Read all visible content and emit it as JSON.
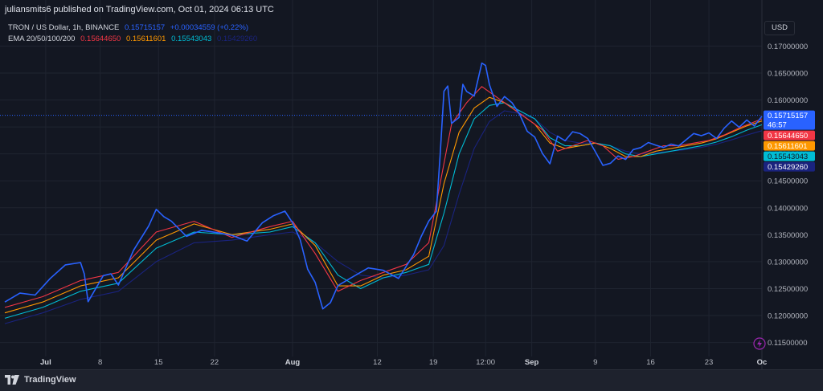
{
  "header": {
    "published_by": "juliansmits6 published on TradingView.com, Oct 01, 2024 06:13 UTC"
  },
  "legend": {
    "symbol": "TRON / US Dollar, 1h, BINANCE",
    "price": "0.15715157",
    "change": "+0.00034559 (+0.22%)",
    "ema_label": "EMA 20/50/100/200",
    "ema20": "0.15644650",
    "ema50": "0.15611601",
    "ema100": "0.15543043",
    "ema200": "0.15429260"
  },
  "currency": "USD",
  "price_labels": {
    "last": "0.15715157",
    "countdown": "46:57",
    "ema20": "0.15644650",
    "ema50": "0.15611601",
    "ema100": "0.15543043",
    "ema200": "0.15429260"
  },
  "footer": {
    "brand": "TradingView"
  },
  "colors": {
    "price": "#2962ff",
    "ema20": "#f23645",
    "ema50": "#ff9800",
    "ema100": "#00bcd4",
    "ema200": "#1a237e",
    "background": "#131722"
  },
  "chart_data": {
    "type": "line",
    "title": "TRON / US Dollar, 1h, BINANCE",
    "ylim": [
      0.113,
      0.172
    ],
    "yticks": [
      "0.17000000",
      "0.16500000",
      "0.16000000",
      "0.15500000",
      "0.15000000",
      "0.14500000",
      "0.14000000",
      "0.13500000",
      "0.13000000",
      "0.12500000",
      "0.12000000",
      "0.11500000"
    ],
    "ytick_values": [
      0.17,
      0.165,
      0.16,
      0.155,
      0.15,
      0.145,
      0.14,
      0.135,
      0.13,
      0.125,
      0.12,
      0.115
    ],
    "xticks": [
      {
        "label": "Jul",
        "pos": 0.054,
        "bold": true
      },
      {
        "label": "8",
        "pos": 0.126,
        "bold": false
      },
      {
        "label": "15",
        "pos": 0.203,
        "bold": false
      },
      {
        "label": "22",
        "pos": 0.277,
        "bold": false
      },
      {
        "label": "Aug",
        "pos": 0.38,
        "bold": true
      },
      {
        "label": "12",
        "pos": 0.492,
        "bold": false
      },
      {
        "label": "19",
        "pos": 0.566,
        "bold": false
      },
      {
        "label": "12:00",
        "pos": 0.635,
        "bold": false
      },
      {
        "label": "Sep",
        "pos": 0.696,
        "bold": true
      },
      {
        "label": "9",
        "pos": 0.78,
        "bold": false
      },
      {
        "label": "16",
        "pos": 0.853,
        "bold": false
      },
      {
        "label": "23",
        "pos": 0.93,
        "bold": false
      },
      {
        "label": "Oc",
        "pos": 1.0,
        "bold": true
      }
    ],
    "series": [
      {
        "name": "TRON / US Dollar",
        "color": "#2962ff",
        "x": [
          0,
          0.02,
          0.04,
          0.06,
          0.08,
          0.1,
          0.105,
          0.11,
          0.13,
          0.14,
          0.15,
          0.17,
          0.19,
          0.2,
          0.21,
          0.22,
          0.24,
          0.26,
          0.28,
          0.3,
          0.32,
          0.34,
          0.355,
          0.37,
          0.38,
          0.39,
          0.4,
          0.41,
          0.42,
          0.43,
          0.44,
          0.46,
          0.48,
          0.5,
          0.52,
          0.54,
          0.55,
          0.56,
          0.57,
          0.575,
          0.58,
          0.585,
          0.59,
          0.6,
          0.605,
          0.61,
          0.62,
          0.63,
          0.635,
          0.64,
          0.65,
          0.66,
          0.67,
          0.68,
          0.69,
          0.7,
          0.71,
          0.72,
          0.73,
          0.74,
          0.75,
          0.76,
          0.77,
          0.78,
          0.79,
          0.8,
          0.81,
          0.82,
          0.83,
          0.84,
          0.85,
          0.86,
          0.87,
          0.88,
          0.89,
          0.9,
          0.91,
          0.92,
          0.93,
          0.94,
          0.95,
          0.96,
          0.97,
          0.98,
          0.99,
          1.0
        ],
        "y": [
          0.1225,
          0.124,
          0.1235,
          0.1265,
          0.129,
          0.1295,
          0.1275,
          0.1225,
          0.1275,
          0.128,
          0.126,
          0.1325,
          0.137,
          0.14,
          0.1385,
          0.1375,
          0.1345,
          0.1355,
          0.135,
          0.1345,
          0.1335,
          0.137,
          0.1385,
          0.1395,
          0.1375,
          0.1345,
          0.129,
          0.1265,
          0.1215,
          0.1225,
          0.1255,
          0.127,
          0.1285,
          0.128,
          0.1265,
          0.131,
          0.1345,
          0.1375,
          0.1395,
          0.15,
          0.162,
          0.163,
          0.156,
          0.157,
          0.163,
          0.1615,
          0.1605,
          0.1665,
          0.166,
          0.1625,
          0.1585,
          0.1605,
          0.1595,
          0.1575,
          0.1545,
          0.1535,
          0.1505,
          0.1485,
          0.1535,
          0.1525,
          0.154,
          0.1535,
          0.1525,
          0.15,
          0.1475,
          0.148,
          0.1495,
          0.149,
          0.151,
          0.1515,
          0.1525,
          0.152,
          0.1515,
          0.152,
          0.1515,
          0.1525,
          0.1535,
          0.153,
          0.1535,
          0.1525,
          0.1545,
          0.156,
          0.155,
          0.1565,
          0.1555,
          0.157
        ]
      },
      {
        "name": "EMA 20",
        "color": "#f23645",
        "x": [
          0,
          0.05,
          0.1,
          0.15,
          0.2,
          0.25,
          0.3,
          0.35,
          0.38,
          0.41,
          0.44,
          0.47,
          0.5,
          0.53,
          0.56,
          0.575,
          0.59,
          0.61,
          0.63,
          0.65,
          0.67,
          0.69,
          0.71,
          0.73,
          0.75,
          0.77,
          0.79,
          0.81,
          0.83,
          0.85,
          0.87,
          0.89,
          0.91,
          0.93,
          0.95,
          0.97,
          1.0
        ],
        "y": [
          0.1215,
          0.1235,
          0.1265,
          0.128,
          0.1355,
          0.1375,
          0.1345,
          0.1365,
          0.1375,
          0.1315,
          0.1245,
          0.1265,
          0.128,
          0.1295,
          0.1335,
          0.1445,
          0.1555,
          0.1595,
          0.1625,
          0.1605,
          0.1585,
          0.1565,
          0.1545,
          0.1505,
          0.1515,
          0.1525,
          0.1515,
          0.149,
          0.1495,
          0.1505,
          0.1515,
          0.1515,
          0.152,
          0.1525,
          0.1535,
          0.1548,
          0.1565
        ]
      },
      {
        "name": "EMA 50",
        "color": "#ff9800",
        "x": [
          0,
          0.05,
          0.1,
          0.15,
          0.2,
          0.25,
          0.3,
          0.35,
          0.38,
          0.41,
          0.44,
          0.47,
          0.5,
          0.53,
          0.56,
          0.58,
          0.6,
          0.62,
          0.64,
          0.66,
          0.68,
          0.7,
          0.72,
          0.74,
          0.76,
          0.78,
          0.8,
          0.82,
          0.84,
          0.86,
          0.88,
          0.9,
          0.92,
          0.94,
          0.96,
          0.98,
          1.0
        ],
        "y": [
          0.1205,
          0.1225,
          0.1255,
          0.127,
          0.134,
          0.137,
          0.135,
          0.136,
          0.137,
          0.133,
          0.1255,
          0.1255,
          0.1275,
          0.1285,
          0.131,
          0.1445,
          0.154,
          0.1585,
          0.1605,
          0.1595,
          0.1575,
          0.1555,
          0.152,
          0.151,
          0.1515,
          0.152,
          0.151,
          0.1495,
          0.1495,
          0.1505,
          0.151,
          0.1515,
          0.152,
          0.1528,
          0.154,
          0.1552,
          0.1561
        ]
      },
      {
        "name": "EMA 100",
        "color": "#00bcd4",
        "x": [
          0,
          0.05,
          0.1,
          0.15,
          0.2,
          0.25,
          0.3,
          0.35,
          0.38,
          0.41,
          0.44,
          0.47,
          0.5,
          0.53,
          0.56,
          0.58,
          0.6,
          0.62,
          0.64,
          0.66,
          0.68,
          0.7,
          0.72,
          0.74,
          0.76,
          0.78,
          0.8,
          0.82,
          0.84,
          0.86,
          0.88,
          0.9,
          0.92,
          0.94,
          0.96,
          0.98,
          1.0
        ],
        "y": [
          0.1195,
          0.1215,
          0.1245,
          0.126,
          0.1325,
          0.1355,
          0.135,
          0.1355,
          0.1365,
          0.1335,
          0.1275,
          0.125,
          0.127,
          0.128,
          0.1295,
          0.139,
          0.15,
          0.1565,
          0.159,
          0.1595,
          0.158,
          0.1565,
          0.153,
          0.1515,
          0.1515,
          0.152,
          0.1515,
          0.15,
          0.1495,
          0.15,
          0.1505,
          0.151,
          0.1515,
          0.1522,
          0.1532,
          0.1544,
          0.1554
        ]
      },
      {
        "name": "EMA 200",
        "color": "#1a237e",
        "x": [
          0,
          0.05,
          0.1,
          0.15,
          0.2,
          0.25,
          0.3,
          0.35,
          0.38,
          0.41,
          0.44,
          0.47,
          0.5,
          0.53,
          0.56,
          0.58,
          0.6,
          0.62,
          0.64,
          0.66,
          0.68,
          0.7,
          0.72,
          0.74,
          0.76,
          0.78,
          0.8,
          0.82,
          0.84,
          0.86,
          0.88,
          0.9,
          0.92,
          0.94,
          0.96,
          0.98,
          1.0
        ],
        "y": [
          0.1185,
          0.1205,
          0.123,
          0.1245,
          0.13,
          0.1335,
          0.134,
          0.135,
          0.1355,
          0.1335,
          0.13,
          0.1275,
          0.127,
          0.1275,
          0.1285,
          0.133,
          0.1425,
          0.151,
          0.156,
          0.158,
          0.1575,
          0.1565,
          0.154,
          0.1525,
          0.152,
          0.152,
          0.1515,
          0.1505,
          0.15,
          0.1502,
          0.1505,
          0.1508,
          0.1512,
          0.1518,
          0.1526,
          0.1535,
          0.1543
        ]
      }
    ]
  }
}
